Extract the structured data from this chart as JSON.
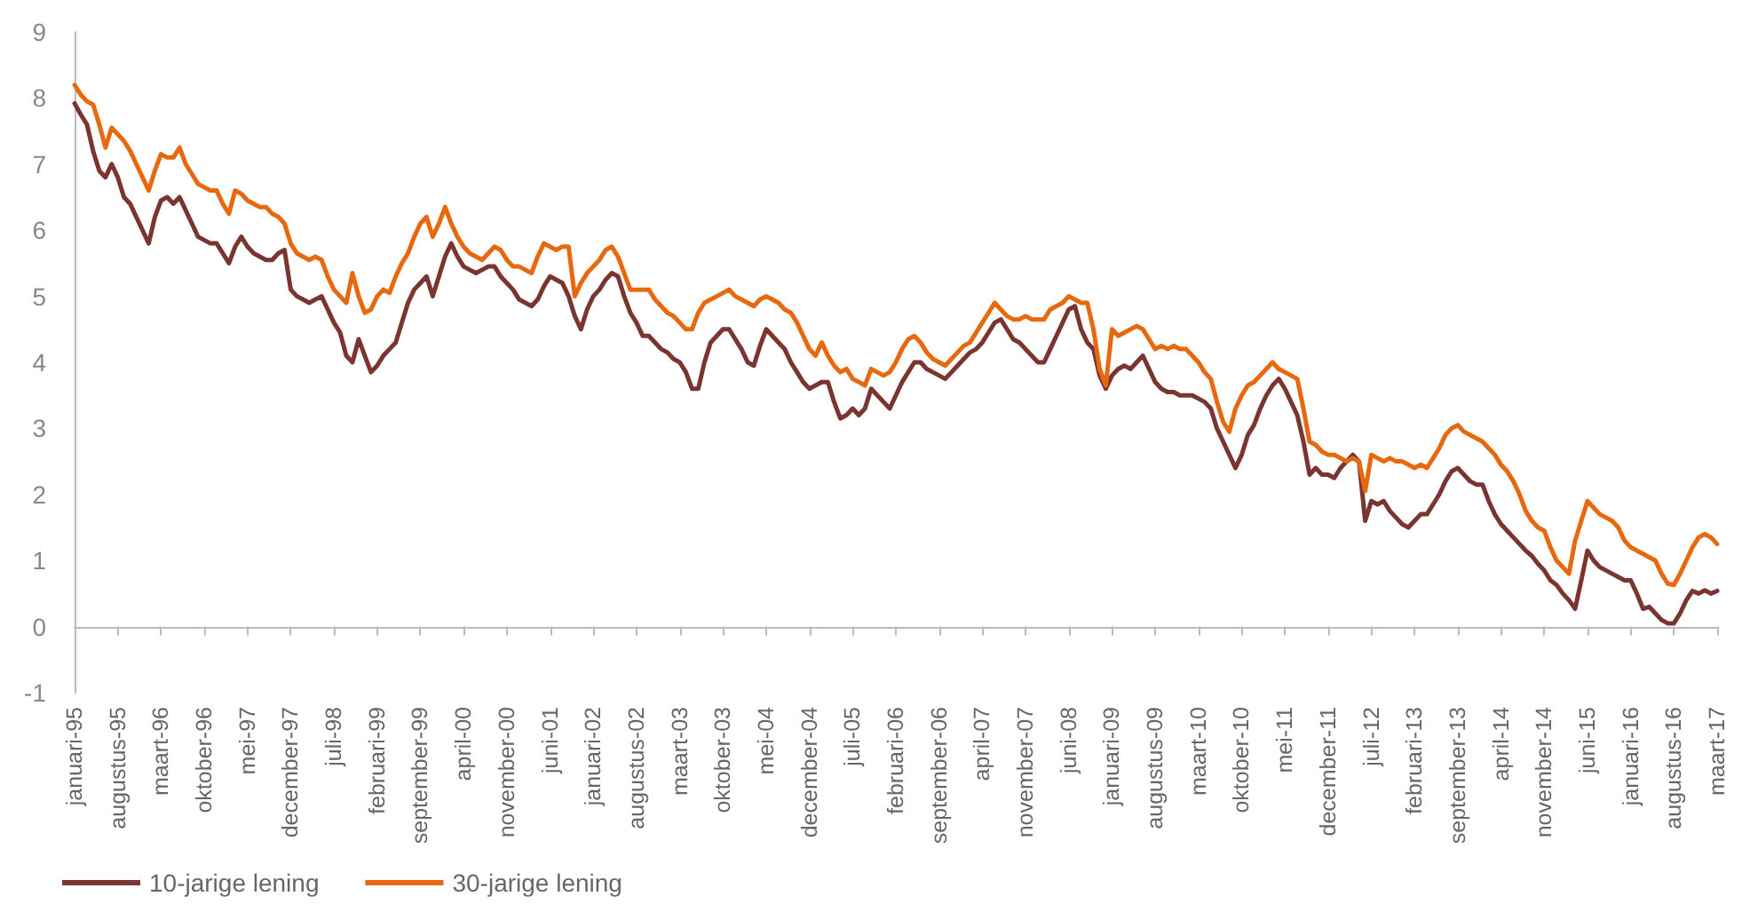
{
  "chart_data": {
    "type": "line",
    "categories": [
      "januari-95",
      null,
      null,
      null,
      null,
      null,
      null,
      "augustus-95",
      null,
      null,
      null,
      null,
      null,
      null,
      "maart-96",
      null,
      null,
      null,
      null,
      null,
      null,
      "oktober-96",
      null,
      null,
      null,
      null,
      null,
      null,
      "mei-97",
      null,
      null,
      null,
      null,
      null,
      null,
      "december-97",
      null,
      null,
      null,
      null,
      null,
      null,
      "juli-98",
      null,
      null,
      null,
      null,
      null,
      null,
      "februari-99",
      null,
      null,
      null,
      null,
      null,
      null,
      "september-99",
      null,
      null,
      null,
      null,
      null,
      null,
      "april-00",
      null,
      null,
      null,
      null,
      null,
      null,
      "november-00",
      null,
      null,
      null,
      null,
      null,
      null,
      "juni-01",
      null,
      null,
      null,
      null,
      null,
      null,
      "januari-02",
      null,
      null,
      null,
      null,
      null,
      null,
      "augustus-02",
      null,
      null,
      null,
      null,
      null,
      null,
      "maart-03",
      null,
      null,
      null,
      null,
      null,
      null,
      "oktober-03",
      null,
      null,
      null,
      null,
      null,
      null,
      "mei-04",
      null,
      null,
      null,
      null,
      null,
      null,
      "december-04",
      null,
      null,
      null,
      null,
      null,
      null,
      "juli-05",
      null,
      null,
      null,
      null,
      null,
      null,
      "februari-06",
      null,
      null,
      null,
      null,
      null,
      null,
      "september-06",
      null,
      null,
      null,
      null,
      null,
      null,
      "april-07",
      null,
      null,
      null,
      null,
      null,
      null,
      "november-07",
      null,
      null,
      null,
      null,
      null,
      null,
      "juni-08",
      null,
      null,
      null,
      null,
      null,
      null,
      "januari-09",
      null,
      null,
      null,
      null,
      null,
      null,
      "augustus-09",
      null,
      null,
      null,
      null,
      null,
      null,
      "maart-10",
      null,
      null,
      null,
      null,
      null,
      null,
      "oktober-10",
      null,
      null,
      null,
      null,
      null,
      null,
      "mei-11",
      null,
      null,
      null,
      null,
      null,
      null,
      "december-11",
      null,
      null,
      null,
      null,
      null,
      null,
      "juli-12",
      null,
      null,
      null,
      null,
      null,
      null,
      "februari-13",
      null,
      null,
      null,
      null,
      null,
      null,
      "september-13",
      null,
      null,
      null,
      null,
      null,
      null,
      "april-14",
      null,
      null,
      null,
      null,
      null,
      null,
      "november-14",
      null,
      null,
      null,
      null,
      null,
      null,
      "juni-15",
      null,
      null,
      null,
      null,
      null,
      null,
      "januari-16",
      null,
      null,
      null,
      null,
      null,
      null,
      "augustus-16",
      null,
      null,
      null,
      null,
      null,
      null,
      "maart-17"
    ],
    "series": [
      {
        "name": "10-jarige lening",
        "color": "#7b3530",
        "values": [
          7.92,
          7.75,
          7.6,
          7.2,
          6.9,
          6.8,
          7.0,
          6.8,
          6.5,
          6.4,
          6.2,
          6.0,
          5.8,
          6.2,
          6.45,
          6.5,
          6.4,
          6.5,
          6.3,
          6.1,
          5.9,
          5.85,
          5.8,
          5.8,
          5.65,
          5.5,
          5.75,
          5.9,
          5.75,
          5.65,
          5.6,
          5.55,
          5.55,
          5.65,
          5.7,
          5.1,
          5.0,
          4.95,
          4.9,
          4.95,
          5.0,
          4.8,
          4.6,
          4.45,
          4.1,
          4.0,
          4.35,
          4.1,
          3.85,
          3.95,
          4.1,
          4.2,
          4.3,
          4.6,
          4.9,
          5.1,
          5.2,
          5.3,
          5.0,
          5.3,
          5.6,
          5.8,
          5.6,
          5.45,
          5.4,
          5.35,
          5.4,
          5.45,
          5.45,
          5.3,
          5.2,
          5.1,
          4.95,
          4.9,
          4.85,
          4.95,
          5.15,
          5.3,
          5.25,
          5.2,
          5.0,
          4.7,
          4.5,
          4.8,
          5.0,
          5.1,
          5.25,
          5.35,
          5.3,
          5.0,
          4.75,
          4.6,
          4.4,
          4.4,
          4.3,
          4.2,
          4.15,
          4.05,
          4.0,
          3.85,
          3.6,
          3.6,
          4.0,
          4.3,
          4.4,
          4.5,
          4.5,
          4.35,
          4.2,
          4.0,
          3.95,
          4.25,
          4.5,
          4.4,
          4.3,
          4.2,
          4.0,
          3.85,
          3.7,
          3.6,
          3.65,
          3.7,
          3.7,
          3.4,
          3.15,
          3.2,
          3.3,
          3.2,
          3.3,
          3.6,
          3.5,
          3.4,
          3.3,
          3.5,
          3.7,
          3.85,
          4.0,
          4.0,
          3.9,
          3.85,
          3.8,
          3.75,
          3.85,
          3.95,
          4.05,
          4.15,
          4.2,
          4.3,
          4.45,
          4.6,
          4.65,
          4.5,
          4.35,
          4.3,
          4.2,
          4.1,
          4.0,
          4.0,
          4.2,
          4.4,
          4.6,
          4.8,
          4.85,
          4.5,
          4.3,
          4.2,
          3.8,
          3.6,
          3.8,
          3.9,
          3.95,
          3.9,
          4.0,
          4.1,
          3.9,
          3.7,
          3.6,
          3.55,
          3.55,
          3.5,
          3.5,
          3.5,
          3.45,
          3.4,
          3.3,
          3.0,
          2.8,
          2.6,
          2.4,
          2.6,
          2.9,
          3.05,
          3.3,
          3.5,
          3.65,
          3.75,
          3.6,
          3.4,
          3.2,
          2.8,
          2.3,
          2.4,
          2.3,
          2.3,
          2.25,
          2.4,
          2.5,
          2.6,
          2.5,
          1.6,
          1.9,
          1.85,
          1.9,
          1.75,
          1.65,
          1.55,
          1.5,
          1.6,
          1.7,
          1.7,
          1.85,
          2.0,
          2.2,
          2.35,
          2.4,
          2.3,
          2.2,
          2.15,
          2.15,
          1.9,
          1.7,
          1.55,
          1.45,
          1.35,
          1.25,
          1.15,
          1.07,
          0.95,
          0.85,
          0.7,
          0.63,
          0.5,
          0.4,
          0.27,
          0.7,
          1.15,
          1.0,
          0.9,
          0.85,
          0.8,
          0.75,
          0.7,
          0.7,
          0.5,
          0.27,
          0.3,
          0.2,
          0.1,
          0.05,
          0.05,
          0.2,
          0.4,
          0.54,
          0.5,
          0.55,
          0.5,
          0.54
        ]
      },
      {
        "name": "30-jarige lening",
        "color": "#e8680f",
        "values": [
          8.2,
          8.05,
          7.95,
          7.9,
          7.6,
          7.25,
          7.55,
          7.45,
          7.35,
          7.2,
          7.0,
          6.8,
          6.6,
          6.9,
          7.15,
          7.1,
          7.1,
          7.25,
          7.0,
          6.85,
          6.7,
          6.65,
          6.6,
          6.6,
          6.4,
          6.25,
          6.6,
          6.55,
          6.45,
          6.4,
          6.35,
          6.35,
          6.25,
          6.2,
          6.1,
          5.8,
          5.65,
          5.6,
          5.55,
          5.6,
          5.55,
          5.3,
          5.1,
          5.0,
          4.9,
          5.35,
          5.0,
          4.75,
          4.8,
          5.0,
          5.1,
          5.05,
          5.3,
          5.5,
          5.65,
          5.9,
          6.1,
          6.2,
          5.9,
          6.1,
          6.35,
          6.1,
          5.9,
          5.75,
          5.65,
          5.6,
          5.55,
          5.65,
          5.75,
          5.7,
          5.55,
          5.45,
          5.45,
          5.4,
          5.35,
          5.6,
          5.8,
          5.75,
          5.7,
          5.75,
          5.75,
          5.0,
          5.2,
          5.35,
          5.45,
          5.55,
          5.7,
          5.75,
          5.6,
          5.35,
          5.1,
          5.1,
          5.1,
          5.1,
          4.95,
          4.85,
          4.75,
          4.7,
          4.6,
          4.5,
          4.5,
          4.75,
          4.9,
          4.95,
          5.0,
          5.05,
          5.1,
          5.0,
          4.95,
          4.9,
          4.85,
          4.95,
          5.0,
          4.95,
          4.9,
          4.8,
          4.75,
          4.6,
          4.4,
          4.2,
          4.1,
          4.3,
          4.1,
          3.95,
          3.85,
          3.9,
          3.75,
          3.7,
          3.65,
          3.9,
          3.85,
          3.8,
          3.85,
          4.0,
          4.2,
          4.35,
          4.4,
          4.3,
          4.15,
          4.05,
          4.0,
          3.95,
          4.05,
          4.15,
          4.25,
          4.3,
          4.45,
          4.6,
          4.75,
          4.9,
          4.8,
          4.7,
          4.65,
          4.65,
          4.7,
          4.65,
          4.65,
          4.65,
          4.8,
          4.85,
          4.9,
          5.0,
          4.95,
          4.9,
          4.9,
          4.5,
          3.9,
          3.65,
          4.5,
          4.4,
          4.45,
          4.5,
          4.55,
          4.5,
          4.35,
          4.2,
          4.25,
          4.2,
          4.25,
          4.2,
          4.2,
          4.1,
          4.0,
          3.85,
          3.75,
          3.4,
          3.1,
          2.95,
          3.3,
          3.5,
          3.65,
          3.7,
          3.8,
          3.9,
          4.0,
          3.9,
          3.85,
          3.8,
          3.75,
          3.3,
          2.8,
          2.75,
          2.65,
          2.6,
          2.6,
          2.55,
          2.5,
          2.55,
          2.5,
          2.05,
          2.6,
          2.55,
          2.5,
          2.55,
          2.5,
          2.5,
          2.45,
          2.4,
          2.45,
          2.4,
          2.55,
          2.7,
          2.9,
          3.0,
          3.05,
          2.95,
          2.9,
          2.85,
          2.8,
          2.7,
          2.6,
          2.45,
          2.35,
          2.2,
          2.0,
          1.75,
          1.6,
          1.5,
          1.45,
          1.2,
          1.0,
          0.9,
          0.8,
          1.3,
          1.6,
          1.9,
          1.8,
          1.7,
          1.65,
          1.6,
          1.5,
          1.3,
          1.2,
          1.15,
          1.1,
          1.05,
          1.0,
          0.8,
          0.65,
          0.63,
          0.8,
          1.0,
          1.2,
          1.35,
          1.4,
          1.35,
          1.25
        ]
      }
    ],
    "ylim": [
      -1,
      9
    ],
    "yticks": [
      -1,
      0,
      1,
      2,
      3,
      4,
      5,
      6,
      7,
      8,
      9
    ],
    "legend": "bottom left",
    "marker": "none",
    "line_style": "solid"
  }
}
